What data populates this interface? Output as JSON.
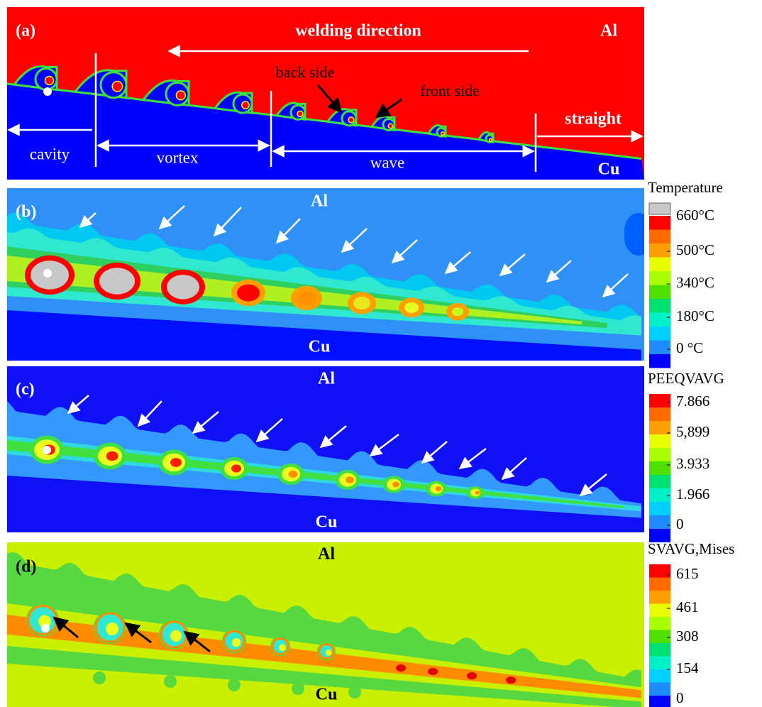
{
  "panels": [
    {
      "label": "(a)",
      "welding_direction": "welding direction",
      "al": "Al",
      "back_side": "back side",
      "front_side": "front side",
      "straight": "straight",
      "cavity": "cavity",
      "vortex": "vortex",
      "wave": "wave",
      "cu": "Cu"
    },
    {
      "label": "(b)",
      "al": "Al",
      "cu": "Cu",
      "legend": {
        "title": "Temperature",
        "ticks": [
          "660°C",
          "500°C",
          "340°C",
          "180°C",
          "0 °C"
        ]
      }
    },
    {
      "label": "(c)",
      "al": "Al",
      "cu": "Cu",
      "legend": {
        "title": "PEEQVAVG",
        "ticks": [
          "7.866",
          "5,899",
          "3.933",
          "1.966",
          "0"
        ]
      }
    },
    {
      "label": "(d)",
      "al": "Al",
      "cu": "Cu",
      "legend": {
        "title": "SVAVG,Mises",
        "ticks": [
          "615",
          "461",
          "308",
          "154",
          "0"
        ]
      }
    }
  ]
}
